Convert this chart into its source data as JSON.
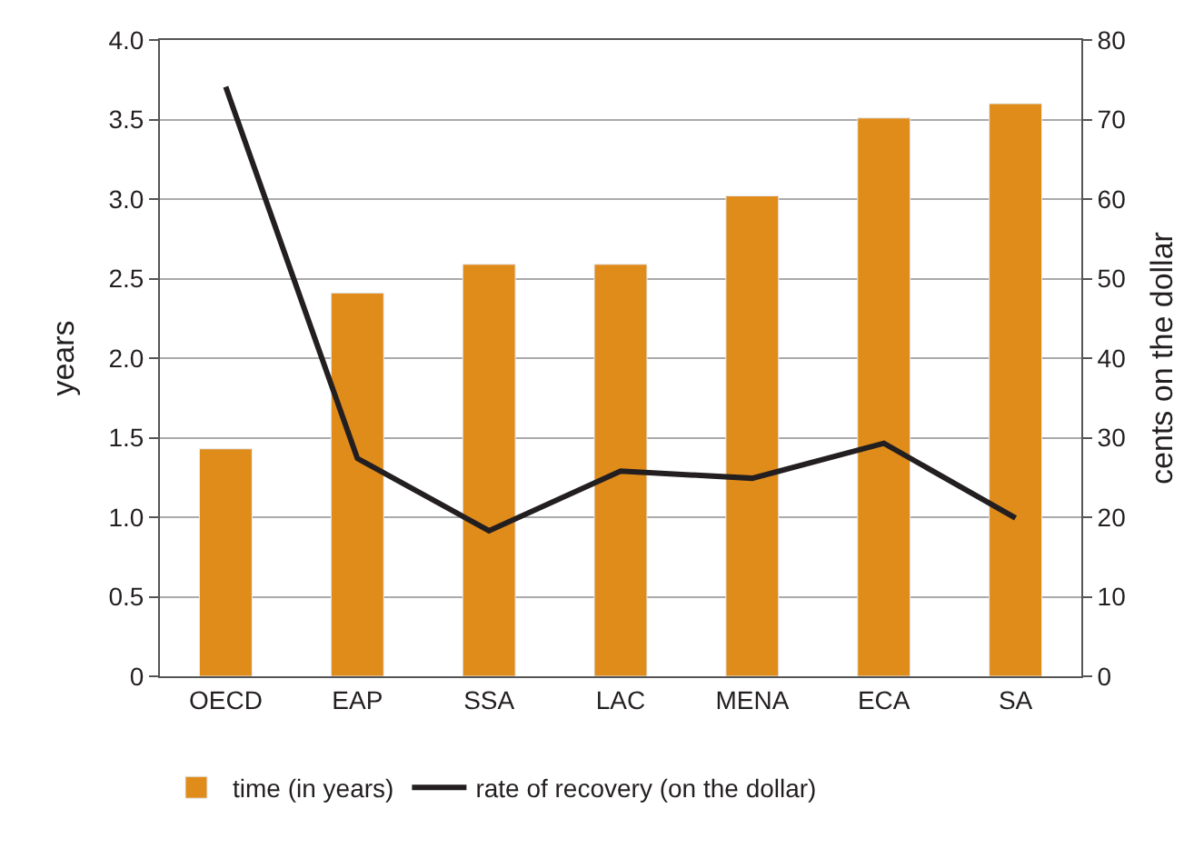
{
  "chart_data": {
    "type": "bar",
    "categories": [
      "OECD",
      "EAP",
      "SSA",
      "LAC",
      "MENA",
      "ECA",
      "SA"
    ],
    "ylabel": "years",
    "y2label": "cents on the dollar",
    "series": [
      {
        "name": "time (in years)",
        "color": "#e08c1b",
        "values": [
          1.43,
          2.41,
          2.59,
          2.59,
          3.02,
          3.51,
          3.6
        ]
      },
      {
        "name": "rate of recovery (on the dollar)",
        "type": "line",
        "axis": "y2",
        "color": "#231f20",
        "values": [
          74.1,
          27.4,
          18.3,
          25.8,
          24.9,
          29.3,
          19.9
        ]
      }
    ],
    "ylim": [
      0,
      4
    ],
    "yticks": [
      {
        "value": 0,
        "label": "0"
      },
      {
        "value": 0.5,
        "label": "0.5"
      },
      {
        "value": 1,
        "label": "1.0"
      },
      {
        "value": 1.5,
        "label": "1.5"
      },
      {
        "value": 2,
        "label": "2.0"
      },
      {
        "value": 2.5,
        "label": "2.5"
      },
      {
        "value": 3,
        "label": "3.0"
      },
      {
        "value": 3.5,
        "label": "3.5"
      },
      {
        "value": 4,
        "label": "4.0"
      }
    ],
    "y2lim": [
      0,
      80
    ],
    "y2ticks": [
      0,
      10,
      20,
      30,
      40,
      50,
      60,
      70,
      80
    ],
    "grid": "y",
    "legend": "bottom",
    "marker": "none",
    "line_style": "solid"
  }
}
